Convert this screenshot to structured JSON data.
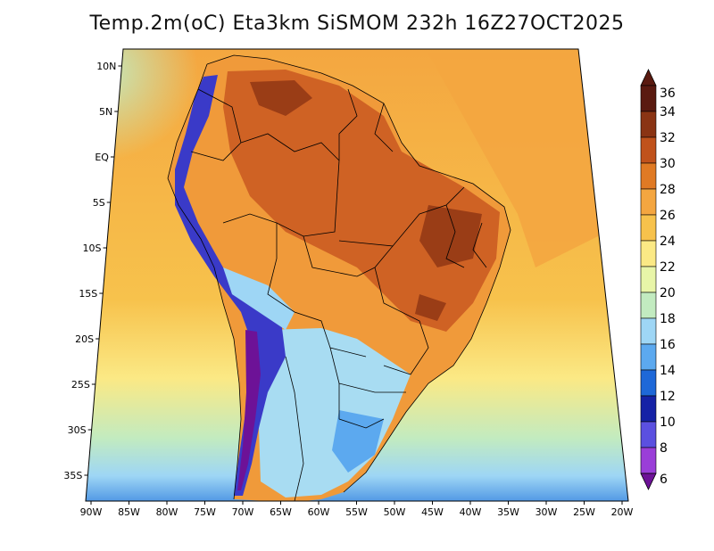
{
  "title": "Temp.2m(oC) Eta3km SiSMOM 232h 16Z27OCT2025",
  "axes": {
    "lon_labels": [
      "90W",
      "85W",
      "80W",
      "75W",
      "70W",
      "65W",
      "60W",
      "55W",
      "50W",
      "45W",
      "40W",
      "35W",
      "30W",
      "25W",
      "20W"
    ],
    "lat_labels": [
      "10N",
      "5N",
      "EQ",
      "5S",
      "10S",
      "15S",
      "20S",
      "25S",
      "30S",
      "35S"
    ]
  },
  "colorbar": {
    "labels": [
      "36",
      "34",
      "32",
      "30",
      "28",
      "26",
      "24",
      "22",
      "20",
      "18",
      "16",
      "14",
      "12",
      "10",
      "8",
      "6"
    ],
    "colors": [
      "#5a1a10",
      "#8a3414",
      "#c0521c",
      "#e07a24",
      "#f4a640",
      "#f7c24c",
      "#fbe985",
      "#e8f5a8",
      "#c2ebc0",
      "#9ed6f5",
      "#5ca9ef",
      "#1e68d8",
      "#1522a6",
      "#5b50e0",
      "#9a3ed8",
      "#6d1297"
    ]
  },
  "map_colors": {
    "ocean_warm": "#f4b048",
    "ocean_mid": "#fde27a",
    "ocean_cool": "#cdeeaa",
    "land_hot": "#cf6224",
    "land_warm": "#f09a3a",
    "land_mild": "#a8dcf2",
    "andes": "#3a3ac8",
    "border": "#000000"
  }
}
